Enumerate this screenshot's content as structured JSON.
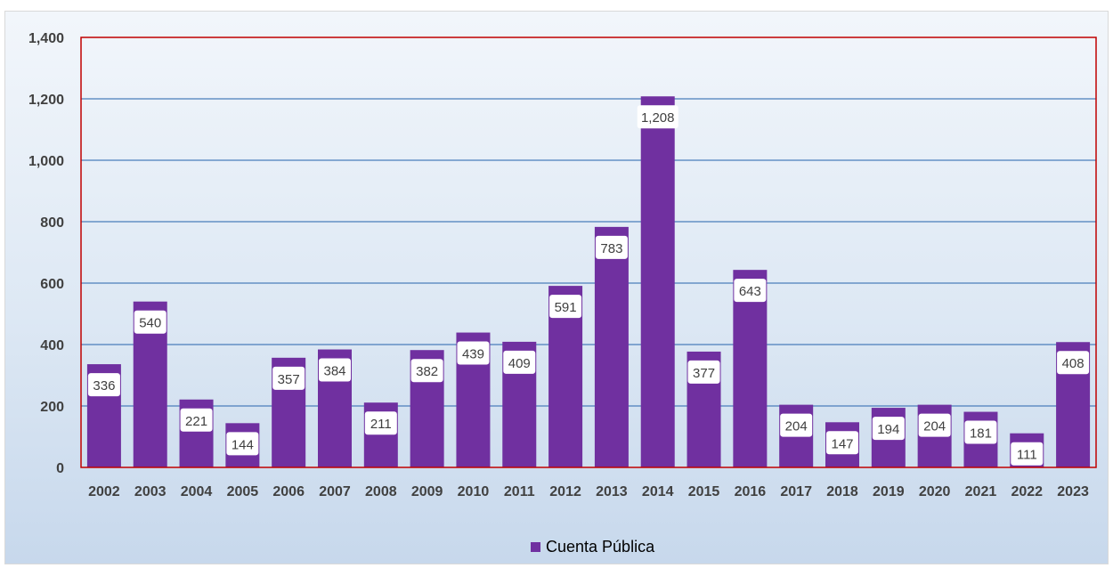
{
  "chart_data": {
    "type": "bar",
    "categories": [
      "2002",
      "2003",
      "2004",
      "2005",
      "2006",
      "2007",
      "2008",
      "2009",
      "2010",
      "2011",
      "2012",
      "2013",
      "2014",
      "2015",
      "2016",
      "2017",
      "2018",
      "2019",
      "2020",
      "2021",
      "2022",
      "2023"
    ],
    "series": [
      {
        "name": "Cuenta Pública",
        "values": [
          336,
          540,
          221,
          144,
          357,
          384,
          211,
          382,
          439,
          409,
          591,
          783,
          1208,
          377,
          643,
          204,
          147,
          194,
          204,
          181,
          111,
          408
        ],
        "value_labels": [
          "336",
          "540",
          "221",
          "144",
          "357",
          "384",
          "211",
          "382",
          "439",
          "409",
          "591",
          "783",
          "1,208",
          "377",
          "643",
          "204",
          "147",
          "194",
          "204",
          "181",
          "111",
          "408"
        ]
      }
    ],
    "ylim": [
      0,
      1400
    ],
    "yticks": [
      0,
      200,
      400,
      600,
      800,
      1000,
      1200,
      1400
    ],
    "ytick_labels": [
      "0",
      "200",
      "400",
      "600",
      "800",
      "1,000",
      "1,200",
      "1,400"
    ],
    "grid": true,
    "legend_position": "bottom-center",
    "colors": {
      "bar": "#7030a0",
      "gridline": "#4a7ebb",
      "plot_border": "#c00000",
      "data_label_bg": "#ffffff"
    }
  },
  "legend": {
    "label": "Cuenta Pública"
  }
}
